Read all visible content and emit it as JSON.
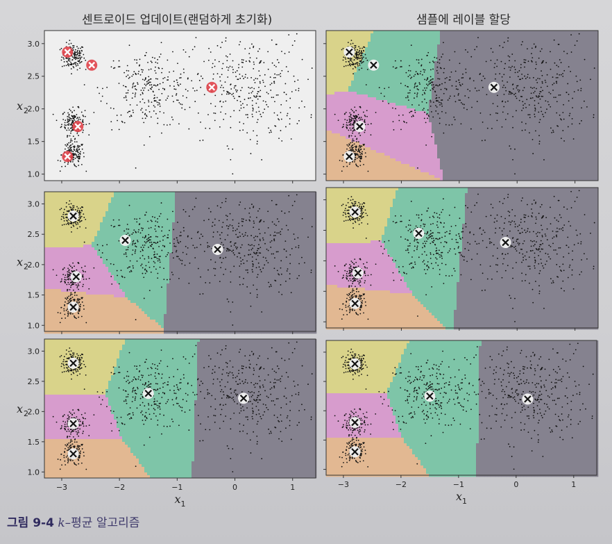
{
  "column_titles": {
    "left": "센트로이드 업데이트(랜덤하게 초기화)",
    "right": "샘플에 레이블 할당"
  },
  "caption": {
    "number": "그림 9-4",
    "k": "k",
    "text": "–평균 알고리즘"
  },
  "axes": {
    "xlabel": "x",
    "xlabel_sub": "1",
    "ylabel": "x",
    "ylabel_sub": "2",
    "x_ticks": [
      "−3",
      "−2",
      "−1",
      "0",
      "1"
    ],
    "y_ticks": [
      "3.0",
      "2.5",
      "2.0",
      "1.5",
      "1.0"
    ]
  },
  "colors": {
    "yellow": "#d9d38a",
    "green": "#7ec5a8",
    "pink": "#d79ccd",
    "orange": "#e2b892",
    "gray": "#85828f",
    "plot_bg": "#efefef",
    "marker_red": "#e0434a"
  },
  "chart_data": [
    {
      "type": "scatter",
      "title": "센트로이드 업데이트(랜덤하게 초기화)",
      "xlabel": "x1",
      "ylabel": "x2",
      "xlim": [
        -3.3,
        1.4
      ],
      "ylim": [
        0.9,
        3.2
      ],
      "clusters": [
        {
          "center": [
            -2.8,
            2.8
          ],
          "spread": 0.1
        },
        {
          "center": [
            -2.8,
            1.8
          ],
          "spread": 0.1
        },
        {
          "center": [
            -2.8,
            1.3
          ],
          "spread": 0.1
        },
        {
          "center": [
            -1.5,
            2.3
          ],
          "spread": 0.4
        },
        {
          "center": [
            0.2,
            2.3
          ],
          "spread": 0.55
        }
      ],
      "centroids": [
        {
          "x": -2.9,
          "y": 2.87
        },
        {
          "x": -2.48,
          "y": 2.67
        },
        {
          "x": -2.72,
          "y": 1.73
        },
        {
          "x": -2.9,
          "y": 1.27
        },
        {
          "x": -0.4,
          "y": 2.33
        }
      ],
      "marker": "red"
    },
    {
      "type": "scatter",
      "title": "샘플에 레이블 할당",
      "xlabel": "x1",
      "ylabel": "x2",
      "xlim": [
        -3.3,
        1.4
      ],
      "ylim": [
        0.9,
        3.2
      ],
      "centroids": [
        {
          "x": -2.9,
          "y": 2.87
        },
        {
          "x": -2.48,
          "y": 2.67
        },
        {
          "x": -2.72,
          "y": 1.73
        },
        {
          "x": -2.9,
          "y": 1.27
        },
        {
          "x": -0.4,
          "y": 2.33
        }
      ],
      "marker": "white"
    },
    {
      "type": "scatter",
      "xlabel": "x1",
      "ylabel": "x2",
      "xlim": [
        -3.3,
        1.4
      ],
      "ylim": [
        0.9,
        3.2
      ],
      "centroids": [
        {
          "x": -2.8,
          "y": 2.8
        },
        {
          "x": -1.9,
          "y": 2.4
        },
        {
          "x": -2.75,
          "y": 1.8
        },
        {
          "x": -2.8,
          "y": 1.3
        },
        {
          "x": -0.3,
          "y": 2.25
        }
      ],
      "marker": "white"
    },
    {
      "type": "scatter",
      "xlabel": "x1",
      "ylabel": "x2",
      "xlim": [
        -3.3,
        1.4
      ],
      "ylim": [
        0.9,
        3.2
      ],
      "centroids": [
        {
          "x": -2.8,
          "y": 2.8
        },
        {
          "x": -1.7,
          "y": 2.45
        },
        {
          "x": -2.75,
          "y": 1.8
        },
        {
          "x": -2.8,
          "y": 1.3
        },
        {
          "x": -0.2,
          "y": 2.3
        }
      ],
      "marker": "white"
    },
    {
      "type": "scatter",
      "xlabel": "x1",
      "ylabel": "x2",
      "xlim": [
        -3.3,
        1.4
      ],
      "ylim": [
        0.9,
        3.2
      ],
      "centroids": [
        {
          "x": -2.8,
          "y": 2.8
        },
        {
          "x": -1.5,
          "y": 2.3
        },
        {
          "x": -2.8,
          "y": 1.8
        },
        {
          "x": -2.8,
          "y": 1.3
        },
        {
          "x": 0.15,
          "y": 2.22
        }
      ],
      "marker": "white"
    },
    {
      "type": "scatter",
      "xlabel": "x1",
      "ylabel": "x2",
      "xlim": [
        -3.3,
        1.4
      ],
      "ylim": [
        0.9,
        3.2
      ],
      "centroids": [
        {
          "x": -2.8,
          "y": 2.8
        },
        {
          "x": -1.5,
          "y": 2.25
        },
        {
          "x": -2.8,
          "y": 1.8
        },
        {
          "x": -2.8,
          "y": 1.3
        },
        {
          "x": 0.2,
          "y": 2.2
        }
      ],
      "marker": "white"
    }
  ]
}
